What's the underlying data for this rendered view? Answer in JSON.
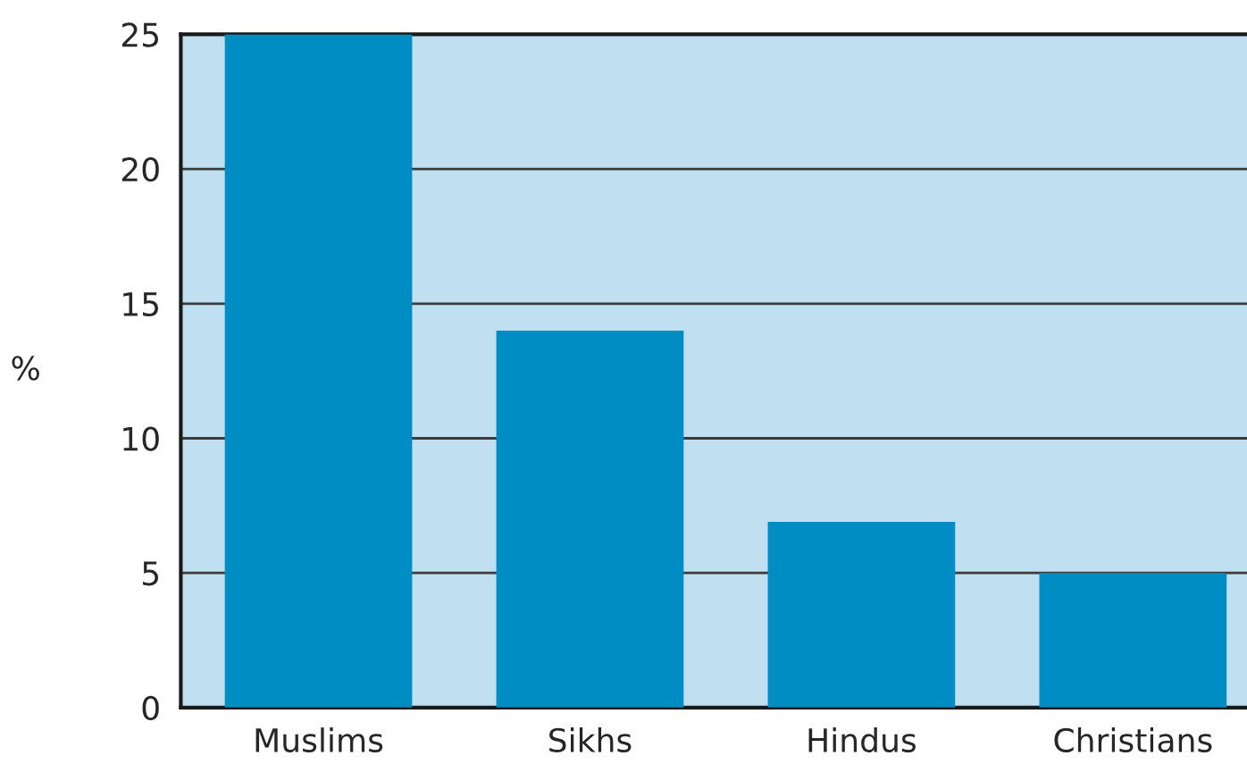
{
  "chart_data": {
    "type": "bar",
    "ylabel": "%",
    "categories": [
      "Muslims",
      "Sikhs",
      "Hindus",
      "Christians"
    ],
    "values": [
      25,
      14,
      6.9,
      5
    ],
    "color": "#008dc4",
    "ylim": [
      0,
      25
    ],
    "yticks": [
      0,
      5,
      10,
      15,
      20,
      25
    ],
    "grid": "y"
  }
}
